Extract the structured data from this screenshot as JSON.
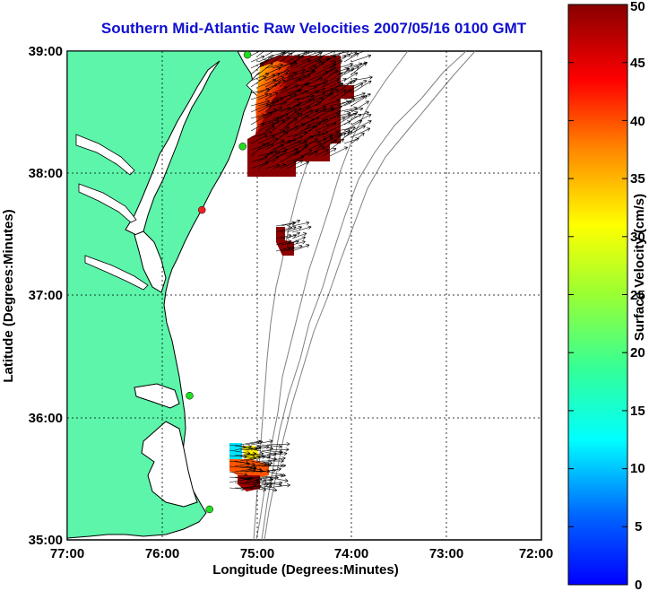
{
  "title": "Southern Mid-Atlantic Raw Velocities 2007/05/16 0100 GMT",
  "map": {
    "xlabel": "Longitude (Degrees:Minutes)",
    "ylabel": "Latitude (Degrees:Minutes)",
    "lon_range": [
      -77,
      -72
    ],
    "lat_range": [
      35,
      39
    ],
    "lon_ticks": [
      "77:00",
      "76:00",
      "75:00",
      "74:00",
      "73:00",
      "72:00"
    ],
    "lat_ticks": [
      "39:00",
      "38:00",
      "37:00",
      "36:00",
      "35:00"
    ],
    "grid": true,
    "land_color": "#5cf5aa",
    "contour_color": "#808080"
  },
  "colorbar": {
    "label": "Surface Velocity (cm/s)",
    "min": 0,
    "max": 50,
    "ticks": [
      "0",
      "5",
      "10",
      "15",
      "20",
      "25",
      "30",
      "35",
      "40",
      "45",
      "50"
    ]
  },
  "radar_stations": [
    {
      "lon": -75.1,
      "lat": 38.97,
      "color": "#22dd22"
    },
    {
      "lon": -75.15,
      "lat": 38.22,
      "color": "#22dd22"
    },
    {
      "lon": -75.58,
      "lat": 37.7,
      "color": "#ee2222"
    },
    {
      "lon": -75.71,
      "lat": 36.18,
      "color": "#22dd22"
    },
    {
      "lon": -75.5,
      "lat": 35.25,
      "color": "#22dd22"
    }
  ]
}
